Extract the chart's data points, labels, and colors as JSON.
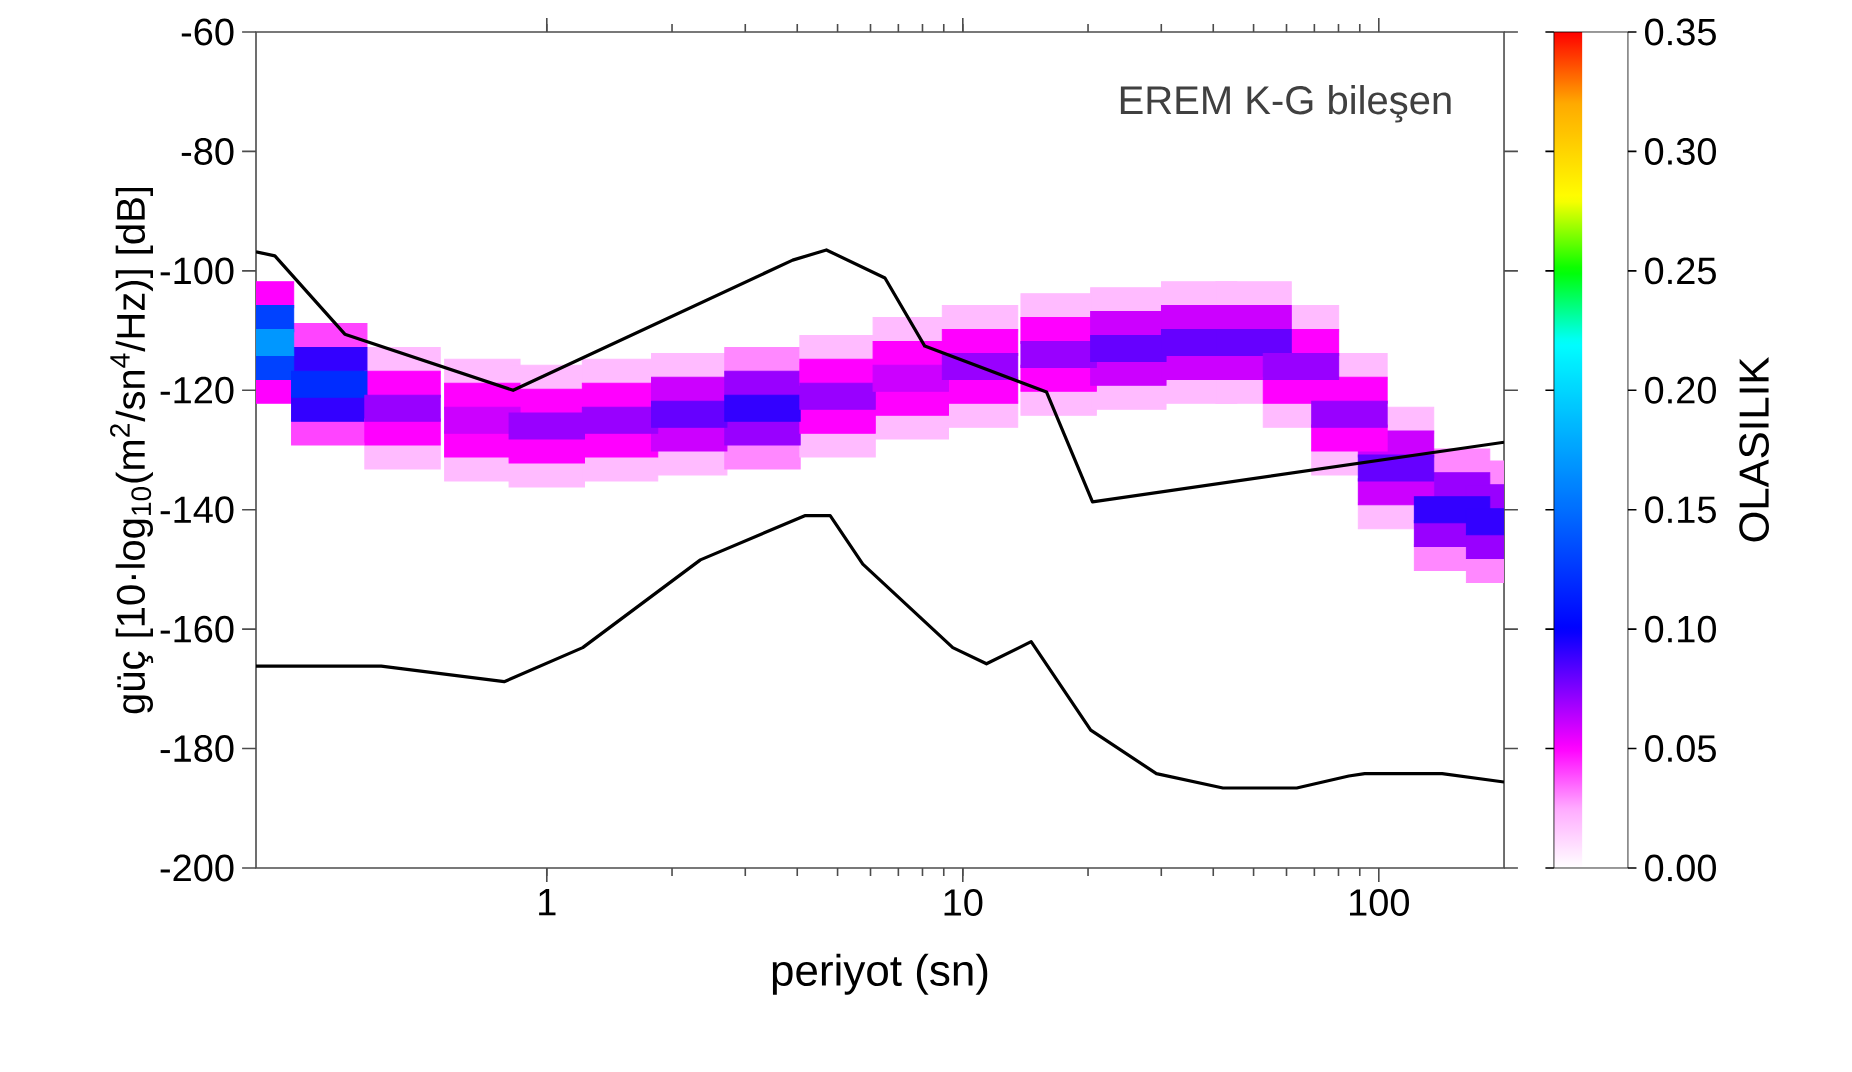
{
  "chart_data": {
    "type": "scatter",
    "xlabel": "periyot (sn)",
    "ylabel": "güç [10·log$_{10}$(m$^{2}$/sn$^{4}$/Hz)] [dB]",
    "clabel": "OLASILIK",
    "annotations": [
      "EREM K-G bileşen"
    ],
    "log": "x",
    "xlim": [
      0.2,
      200
    ],
    "xticks": [
      1,
      10,
      100
    ],
    "ylim": [
      -200,
      -60
    ],
    "yticks": [
      -200,
      -180,
      -160,
      -140,
      -120,
      -100,
      -80,
      -60
    ],
    "clim": [
      0,
      0.35
    ],
    "cticks": [
      {
        "value": 0,
        "label": "0.00"
      },
      {
        "value": 0.05,
        "label": "0.05"
      },
      {
        "value": 0.1,
        "label": "0.10"
      },
      {
        "value": 0.15,
        "label": "0.15"
      },
      {
        "value": 0.2,
        "label": "0.20"
      },
      {
        "value": 0.25,
        "label": "0.25"
      },
      {
        "value": 0.3,
        "label": "0.30"
      },
      {
        "value": 0.35,
        "label": "0.35"
      }
    ],
    "series": [
      {
        "marker": "square",
        "colors": [
          "#ff00ff",
          "#ff44ff",
          "#ffbbff",
          "#ffbbff",
          "#ffbbff",
          "#ffbbff",
          "#ffbbff",
          "#ff88ff",
          "#ffbbff",
          "#ffbbff",
          "#ffbbff",
          "#ffbbff",
          "#ffbbff",
          "#ffbbff",
          "#ffbbff",
          "#ffbbff",
          "#ffbbff",
          "#ffbbff",
          "#ff88ff",
          "#ff88ff",
          "#ff00ff",
          "#ff44ff",
          "#ffbbff",
          "#ffbbff",
          "#ffbbff",
          "#ffbbff",
          "#ffbbff",
          "#ff88ff",
          "#ffbbff",
          "#ffbbff",
          "#ffbbff",
          "#ffbbff",
          "#ffbbff",
          "#ffbbff",
          "#ffbbff",
          "#ffbbff",
          "#ffbbff",
          "#ffbbff",
          "#ff88ff",
          "#ff88ff",
          "#0042ff",
          "#3300ff",
          "#ff00ff",
          "#ff00ff",
          "#ff00ff",
          "#ff00ff",
          "#cc00ff",
          "#9900ff",
          "#ff00ff",
          "#ff00ff",
          "#ff00ff",
          "#ff00ff",
          "#cc00ff",
          "#cc00ff",
          "#cc00ff",
          "#ff00ff",
          "#ff00ff",
          "#cc00ff",
          "#9900ff",
          "#9900ff",
          "#0042ff",
          "#3300ff",
          "#ff00ff",
          "#ff00ff",
          "#ff00ff",
          "#ff00ff",
          "#cc00ff",
          "#9900ff",
          "#ff00ff",
          "#ff00ff",
          "#ff00ff",
          "#ff00ff",
          "#cc00ff",
          "#cc00ff",
          "#cc00ff",
          "#ff00ff",
          "#ff00ff",
          "#cc00ff",
          "#9900ff",
          "#9900ff",
          "#0097ff",
          "#002cff",
          "#9900ff",
          "#cc00ff",
          "#9900ff",
          "#9900ff",
          "#6600ff",
          "#3300ff",
          "#9900ff",
          "#cc00ff",
          "#9900ff",
          "#9900ff",
          "#6600ff",
          "#6600ff",
          "#6600ff",
          "#9900ff",
          "#9900ff",
          "#6600ff",
          "#3300ff",
          "#3300ff"
        ],
        "x": [
          0.2,
          0.3,
          0.45,
          0.7,
          1,
          1.5,
          2.2,
          3.3,
          5,
          7.5,
          11,
          17,
          25,
          37,
          50,
          65,
          85,
          110,
          150,
          200,
          0.2,
          0.3,
          0.45,
          0.7,
          1,
          1.5,
          2.2,
          3.3,
          5,
          7.5,
          11,
          17,
          25,
          37,
          50,
          65,
          85,
          110,
          150,
          200,
          0.2,
          0.3,
          0.45,
          0.7,
          1,
          1.5,
          2.2,
          3.3,
          5,
          7.5,
          11,
          17,
          25,
          37,
          50,
          65,
          85,
          110,
          150,
          200,
          0.2,
          0.3,
          0.45,
          0.7,
          1,
          1.5,
          2.2,
          3.3,
          5,
          7.5,
          11,
          17,
          25,
          37,
          50,
          65,
          85,
          110,
          150,
          200,
          0.2,
          0.3,
          0.45,
          0.7,
          1,
          1.5,
          2.2,
          3.3,
          5,
          7.5,
          11,
          17,
          25,
          37,
          50,
          65,
          85,
          110,
          150,
          200
        ],
        "values": [
          -104,
          -111,
          -115,
          -117,
          -118,
          -117,
          -116,
          -115,
          -113,
          -110,
          -108,
          -106,
          -105,
          -104,
          -104,
          -108,
          -116,
          -125,
          -132,
          -134,
          -120,
          -127,
          -131,
          -133,
          -134,
          -133,
          -132,
          -131,
          -129,
          -126,
          -124,
          -122,
          -121,
          -120,
          -120,
          -124,
          -132,
          -141,
          -148,
          -150,
          -108,
          -115,
          -119,
          -121,
          -122,
          -121,
          -120,
          -119,
          -117,
          -114,
          -112,
          -110,
          -109,
          -108,
          -108,
          -112,
          -120,
          -129,
          -136,
          -138,
          -116,
          -123,
          -127,
          -129,
          -130,
          -129,
          -128,
          -127,
          -125,
          -122,
          -120,
          -118,
          -117,
          -116,
          -116,
          -120,
          -128,
          -137,
          -144,
          -146,
          -112,
          -119,
          -123,
          -125,
          -126,
          -125,
          -124,
          -123,
          -121,
          -118,
          -116,
          -114,
          -113,
          -112,
          -112,
          -116,
          -124,
          -133,
          -140,
          -142
        ],
        "cvalues": [
          0.05,
          0.04,
          0.02,
          0.02,
          0.02,
          0.02,
          0.02,
          0.03,
          0.02,
          0.02,
          0.02,
          0.02,
          0.02,
          0.02,
          0.02,
          0.02,
          0.02,
          0.02,
          0.03,
          0.03,
          0.05,
          0.04,
          0.02,
          0.02,
          0.02,
          0.02,
          0.02,
          0.03,
          0.02,
          0.02,
          0.02,
          0.02,
          0.02,
          0.02,
          0.02,
          0.02,
          0.02,
          0.02,
          0.03,
          0.03,
          0.13,
          0.09,
          0.05,
          0.05,
          0.05,
          0.05,
          0.06,
          0.07,
          0.05,
          0.05,
          0.05,
          0.05,
          0.06,
          0.06,
          0.06,
          0.05,
          0.05,
          0.06,
          0.07,
          0.07,
          0.13,
          0.09,
          0.05,
          0.05,
          0.05,
          0.05,
          0.06,
          0.07,
          0.05,
          0.05,
          0.05,
          0.05,
          0.06,
          0.06,
          0.06,
          0.05,
          0.05,
          0.06,
          0.07,
          0.07,
          0.17,
          0.12,
          0.07,
          0.06,
          0.07,
          0.07,
          0.08,
          0.09,
          0.07,
          0.06,
          0.07,
          0.07,
          0.08,
          0.08,
          0.08,
          0.07,
          0.07,
          0.08,
          0.09,
          0.09
        ]
      },
      {
        "type": "line",
        "color": "#000000",
        "x": [
          0.2,
          0.222,
          0.327,
          0.83,
          3.9,
          4.7,
          6.5,
          8.1,
          15.9,
          20.5,
          200
        ],
        "values": [
          -96.8,
          -97.5,
          -110.6,
          -120,
          -98.2,
          -96.5,
          -101.2,
          -112.6,
          -120.3,
          -138.7,
          -128.7
        ]
      },
      {
        "type": "line",
        "color": "#000000",
        "x": [
          0.2,
          0.4,
          0.79,
          1.22,
          2.34,
          4.17,
          4.8,
          5.75,
          9.46,
          11.4,
          14.6,
          20.3,
          29.2,
          42.2,
          63.5,
          84.7,
          92.5,
          142,
          200
        ],
        "values": [
          -166.2,
          -166.2,
          -168.8,
          -163.1,
          -148.4,
          -141,
          -141,
          -149.1,
          -163.1,
          -165.8,
          -162.1,
          -176.9,
          -184.2,
          -186.6,
          -186.6,
          -184.6,
          -184.2,
          -184.2,
          -185.6
        ]
      }
    ]
  }
}
